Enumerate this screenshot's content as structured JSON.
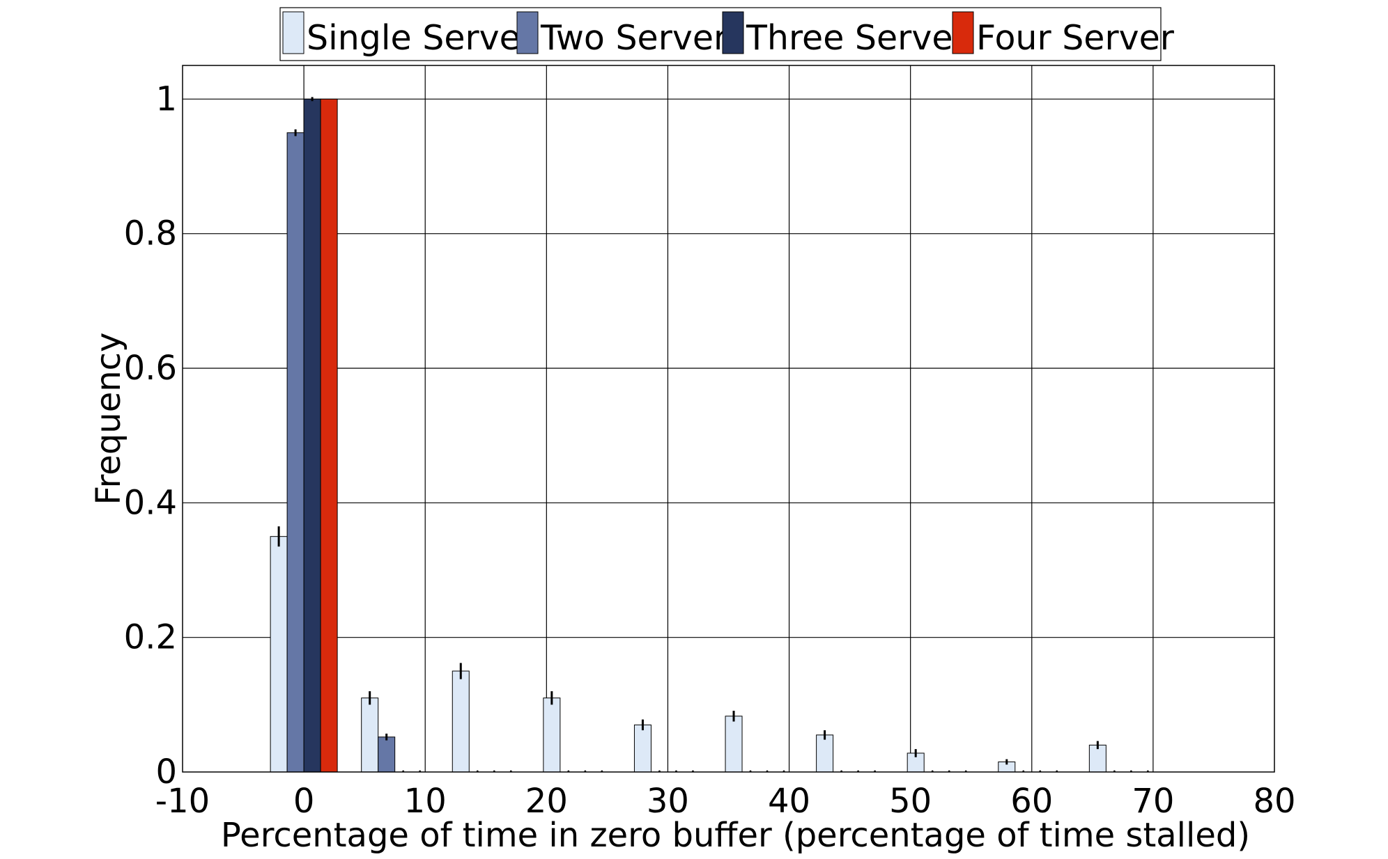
{
  "chart_data": {
    "type": "bar",
    "title": "",
    "xlabel": "Percentage of time in zero buffer (percentage of time stalled)",
    "ylabel": "Frequency",
    "xlim": [
      -10,
      80
    ],
    "ylim": [
      0,
      1.05
    ],
    "xticks": [
      -10,
      0,
      10,
      20,
      30,
      40,
      50,
      60,
      70,
      80
    ],
    "yticks": [
      0,
      0.2,
      0.4,
      0.6,
      0.8,
      1
    ],
    "ytick_labels": [
      "0",
      "0.2",
      "0.4",
      "0.6",
      "0.8",
      "1"
    ],
    "grid": true,
    "legend_position": "top-center",
    "bin_centers": [
      0,
      7.5,
      15,
      22.5,
      30,
      37.5,
      45,
      52.5,
      60,
      67.5
    ],
    "series": [
      {
        "name": "Single Server",
        "color": "#dde9f7",
        "values": [
          0.35,
          0.11,
          0.15,
          0.11,
          0.07,
          0.083,
          0.055,
          0.028,
          0.015,
          0.04
        ],
        "errors": [
          0.015,
          0.01,
          0.012,
          0.01,
          0.008,
          0.008,
          0.007,
          0.006,
          0.004,
          0.006
        ]
      },
      {
        "name": "Two Server",
        "color": "#6577a6",
        "values": [
          0.95,
          0.052,
          0,
          0,
          0,
          0,
          0,
          0,
          0,
          0
        ],
        "errors": [
          0.005,
          0.005,
          0,
          0,
          0,
          0,
          0,
          0,
          0,
          0
        ]
      },
      {
        "name": "Three Server",
        "color": "#26365e",
        "values": [
          1,
          0,
          0,
          0,
          0,
          0,
          0,
          0,
          0,
          0
        ],
        "errors": [
          0.003,
          0,
          0,
          0,
          0,
          0,
          0,
          0,
          0,
          0
        ]
      },
      {
        "name": "Four Server",
        "color": "#d82a0c",
        "values": [
          1,
          0,
          0,
          0,
          0,
          0,
          0,
          0,
          0,
          0
        ],
        "errors": [
          0,
          0,
          0,
          0,
          0,
          0,
          0,
          0,
          0,
          0
        ]
      }
    ]
  }
}
